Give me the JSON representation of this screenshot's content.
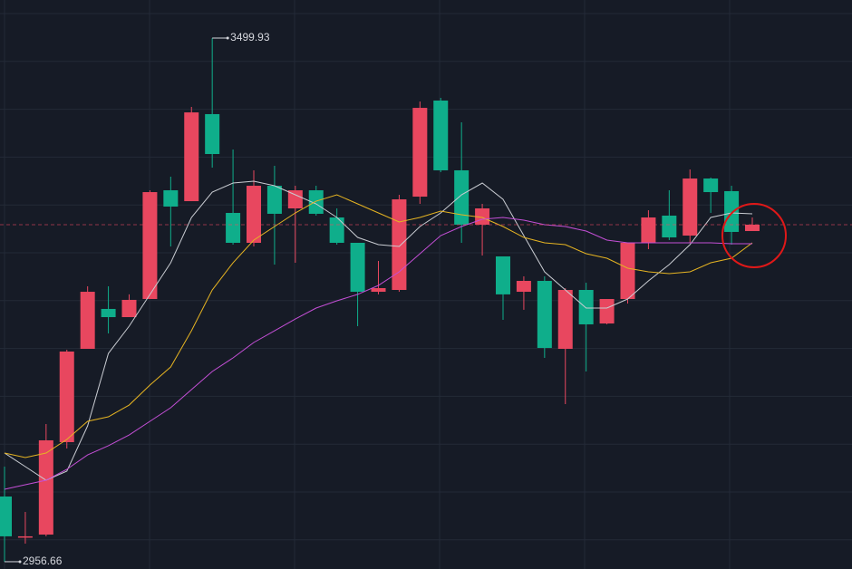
{
  "chart_data": {
    "type": "candlestick",
    "ylim": [
      2949.1,
      3539.4
    ],
    "up_color": "#e8475f",
    "down_color": "#0fae8b",
    "background": "#161b26",
    "open": [
      3024.3,
      2982.0,
      2984.8,
      3080.7,
      3177.5,
      3218.9,
      3210.4,
      3229.2,
      3342.0,
      3330.7,
      3421.0,
      3318.5,
      3287.5,
      3346.7,
      3323.2,
      3342.0,
      3313.8,
      3287.5,
      3236.7,
      3238.6,
      3335.4,
      3435.1,
      3362.7,
      3306.3,
      3273.4,
      3236.7,
      3248.0,
      3177.5,
      3238.6,
      3203.8,
      3229.2,
      3287.5,
      3315.7,
      3295.0,
      3354.2,
      3341.1,
      3299.7
    ],
    "high": [
      3055.3,
      3008.3,
      3099.5,
      3176.6,
      3242.4,
      3242.4,
      3234.0,
      3342.0,
      3356.1,
      3428.5,
      3499.93,
      3384.3,
      3362.7,
      3367.4,
      3346.7,
      3346.7,
      3323.2,
      3287.5,
      3268.7,
      3337.3,
      3434.1,
      3437.9,
      3412.5,
      3327.9,
      3273.4,
      3252.7,
      3252.7,
      3240.5,
      3246.1,
      3229.2,
      3287.5,
      3321.3,
      3342.0,
      3363.6,
      3355.2,
      3346.7,
      3313.8
    ],
    "low": [
      2956.66,
      2975.4,
      2983.0,
      3074.1,
      3177.5,
      3193.5,
      3210.4,
      3229.2,
      3283.7,
      3330.7,
      3365.5,
      3285.6,
      3283.7,
      3264.9,
      3266.8,
      3315.7,
      3285.6,
      3201.0,
      3234.0,
      3236.7,
      3327.9,
      3360.8,
      3287.5,
      3274.3,
      3207.6,
      3218.0,
      3168.1,
      3120.2,
      3154.0,
      3202.9,
      3224.5,
      3280.9,
      3290.3,
      3287.5,
      3318.5,
      3285.6,
      3299.7
    ],
    "close": [
      2983.0,
      2983.0,
      3082.6,
      3174.7,
      3236.7,
      3210.4,
      3228.3,
      3340.1,
      3325.1,
      3422.8,
      3379.6,
      3287.5,
      3346.7,
      3317.6,
      3342.0,
      3317.6,
      3287.5,
      3236.7,
      3240.5,
      3332.6,
      3427.5,
      3362.7,
      3306.3,
      3323.2,
      3234.0,
      3248.0,
      3178.4,
      3238.6,
      3202.9,
      3229.2,
      3287.5,
      3313.8,
      3293.1,
      3354.2,
      3340.1,
      3298.8,
      3306.3
    ],
    "lines": [
      {
        "color": "#c9ccd2",
        "values": [
          3069.4,
          3055.3,
          3041.2,
          3050.6,
          3097.6,
          3172.8,
          3201.0,
          3233.9,
          3266.8,
          3313.8,
          3340.1,
          3349.5,
          3351.4,
          3346.7,
          3337.3,
          3327.9,
          3313.8,
          3293.1,
          3285.6,
          3283.7,
          3304.4,
          3318.5,
          3337.3,
          3349.5,
          3332.6,
          3295.0,
          3257.4,
          3238.6,
          3219.8,
          3219.8,
          3229.2,
          3248.0,
          3264.9,
          3285.6,
          3313.8,
          3318.5,
          3317.6
        ]
      },
      {
        "color": "#e6b422",
        "values": [
          3069.4,
          3064.7,
          3069.4,
          3083.5,
          3102.3,
          3107.0,
          3119.2,
          3139.9,
          3158.7,
          3196.3,
          3238.6,
          3266.8,
          3290.3,
          3304.4,
          3318.5,
          3330.7,
          3337.3,
          3327.9,
          3318.5,
          3309.1,
          3313.8,
          3320.4,
          3316.6,
          3313.8,
          3304.4,
          3293.1,
          3287.5,
          3285.6,
          3276.2,
          3271.5,
          3261.2,
          3257.4,
          3255.5,
          3257.4,
          3266.8,
          3271.5,
          3287.5
        ]
      },
      {
        "color": "#c44fd6",
        "values": [
          3031.8,
          3036.5,
          3041.2,
          3052.5,
          3067.5,
          3077.0,
          3088.2,
          3102.3,
          3116.4,
          3135.2,
          3154.0,
          3168.1,
          3184.1,
          3196.3,
          3208.5,
          3219.8,
          3227.3,
          3234.0,
          3243.3,
          3257.4,
          3276.2,
          3295.0,
          3304.4,
          3311.9,
          3313.8,
          3311.0,
          3306.3,
          3304.4,
          3299.7,
          3290.3,
          3287.5,
          3287.5,
          3287.5,
          3287.5,
          3287.5,
          3286.5,
          3286.5
        ]
      }
    ]
  }
}
